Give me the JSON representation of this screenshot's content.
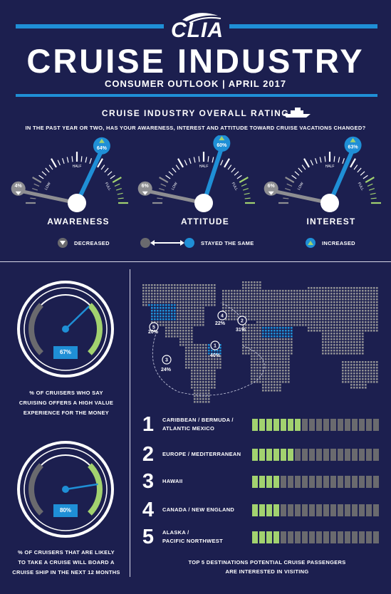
{
  "header": {
    "logo_text": "CLIA",
    "title": "CRUISE INDUSTRY",
    "subtitle": "CONSUMER OUTLOOK  |  APRIL 2017"
  },
  "rating": {
    "section_title": "CRUISE INDUSTRY OVERALL RATING",
    "question": "IN THE PAST YEAR OR TWO, HAS YOUR AWARENESS, INTEREST AND ATTITUDE TOWARD CRUISE VACATIONS CHANGED?",
    "gauges": [
      {
        "label": "AWARENESS",
        "decreased": "4%",
        "increased": "64%"
      },
      {
        "label": "ATTITUDE",
        "decreased": "6%",
        "increased": "60%"
      },
      {
        "label": "INTEREST",
        "decreased": "6%",
        "increased": "63%"
      }
    ],
    "scale_labels": {
      "low": "LOW",
      "half": "HALF",
      "full": "FULL"
    },
    "legend": {
      "decreased": "DECREASED",
      "same": "STAYED THE SAME",
      "increased": "INCREASED"
    }
  },
  "speedometers": [
    {
      "value_text": "67%",
      "value": 67,
      "caption": [
        "% OF CRUISERS WHO SAY",
        "CRUISING OFFERS A HIGH VALUE",
        "EXPERIENCE FOR THE MONEY"
      ]
    },
    {
      "value_text": "80%",
      "value": 80,
      "caption": [
        "% OF CRUISERS THAT ARE LIKELY",
        "TO TAKE A CRUISE WILL BOARD A",
        "CRUISE SHIP IN THE NEXT 12 MONTHS"
      ]
    }
  ],
  "map_markers": [
    {
      "rank": "1",
      "pct": "40%"
    },
    {
      "rank": "2",
      "pct": "31%"
    },
    {
      "rank": "3",
      "pct": "24%"
    },
    {
      "rank": "4",
      "pct": "22%"
    },
    {
      "rank": "5",
      "pct": "20%"
    }
  ],
  "chart_data": {
    "type": "bar",
    "categories": [
      "CARIBBEAN / BERMUDA / ATLANTIC MEXICO",
      "EUROPE / MEDITERRANEAN",
      "HAWAII",
      "CANADA / NEW ENGLAND",
      "ALASKA / PACIFIC NORTHWEST"
    ],
    "values": [
      40,
      31,
      24,
      22,
      20
    ],
    "ranks": [
      "1",
      "2",
      "3",
      "4",
      "5"
    ],
    "labels": [
      [
        "CARIBBEAN / BERMUDA /",
        "ATLANTIC MEXICO"
      ],
      [
        "EUROPE / MEDITERRANEAN"
      ],
      [
        "HAWAII"
      ],
      [
        "CANADA / NEW ENGLAND"
      ],
      [
        "ALASKA /",
        "PACIFIC NORTHWEST"
      ]
    ],
    "ylim": [
      0,
      100
    ],
    "colors": {
      "filled": "#a2d26f",
      "empty": "#6a6a6e"
    }
  },
  "footer": {
    "line1": "TOP 5 DESTINATIONS POTENTIAL CRUISE PASSENGERS",
    "line2": "ARE INTERESTED IN VISITING"
  },
  "colors": {
    "background": "#1c1f4f",
    "accent_blue": "#1f8fd6",
    "green": "#a2d26f",
    "gray": "#6a6a6e"
  }
}
